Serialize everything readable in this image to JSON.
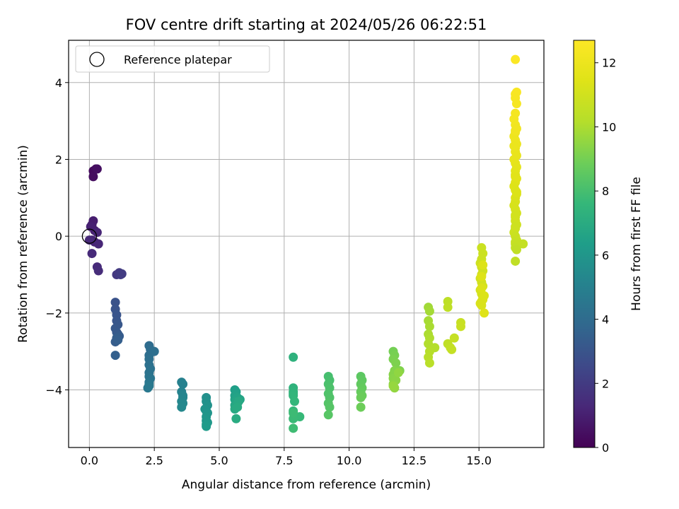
{
  "chart_data": {
    "type": "scatter",
    "title": "FOV centre drift starting at 2024/05/26 06:22:51",
    "xlabel": "Angular distance from reference (arcmin)",
    "ylabel": "Rotation from reference (arcmin)",
    "xlim": [
      -0.8,
      17.5
    ],
    "ylim": [
      -5.5,
      5.1
    ],
    "xticks": [
      0.0,
      2.5,
      5.0,
      7.5,
      10.0,
      12.5,
      15.0
    ],
    "xtick_labels": [
      "0.0",
      "2.5",
      "5.0",
      "7.5",
      "10.0",
      "12.5",
      "15.0"
    ],
    "yticks": [
      -4,
      -2,
      0,
      2,
      4
    ],
    "ytick_labels": [
      "−4",
      "−2",
      "0",
      "2",
      "4"
    ],
    "grid": true,
    "legend": {
      "placement": "top-left",
      "entries": [
        "Reference platepar"
      ]
    },
    "reference_point": {
      "x": 0.0,
      "y": 0.0
    },
    "colorbar": {
      "label": "Hours from first FF file",
      "colormap": "viridis",
      "range": [
        0,
        12.7
      ],
      "ticks": [
        0,
        2,
        4,
        6,
        8,
        10,
        12
      ],
      "tick_labels": [
        "0",
        "2",
        "4",
        "6",
        "8",
        "10",
        "12"
      ]
    },
    "series": [
      {
        "x": [
          0.15,
          0.25,
          0.15,
          0.3
        ],
        "y": [
          1.7,
          1.75,
          1.55,
          1.75
        ],
        "c": [
          0.3,
          0.35,
          0.4,
          0.45
        ]
      },
      {
        "x": [
          0.1,
          0.15,
          0.2,
          0.05,
          0.1,
          0.2,
          0.3,
          0.35,
          0.0,
          0.1,
          0.3,
          0.35
        ],
        "y": [
          0.3,
          0.4,
          0.15,
          0.25,
          -0.1,
          -0.15,
          0.1,
          -0.2,
          -0.1,
          -0.45,
          -0.8,
          -0.9
        ],
        "c": [
          0.9,
          0.95,
          1.0,
          1.05,
          1.1,
          1.15,
          1.2,
          1.25,
          1.3,
          1.35,
          1.4,
          1.45
        ]
      },
      {
        "x": [
          1.05,
          1.15,
          1.2,
          1.25
        ],
        "y": [
          -1.0,
          -0.95,
          -1.0,
          -0.98
        ],
        "c": [
          1.9,
          1.95,
          2.0,
          2.05
        ]
      },
      {
        "x": [
          1.0,
          1.0,
          1.05,
          1.05,
          1.1,
          1.0,
          1.05,
          1.1,
          1.15,
          1.0,
          1.05,
          1.1,
          1.0
        ],
        "y": [
          -1.72,
          -1.9,
          -2.05,
          -2.2,
          -2.3,
          -2.4,
          -2.5,
          -2.55,
          -2.6,
          -2.75,
          -2.65,
          -2.7,
          -3.1
        ],
        "c": [
          2.9,
          2.95,
          3.0,
          3.05,
          3.1,
          3.15,
          3.2,
          3.25,
          3.3,
          3.35,
          3.4,
          3.45,
          3.5
        ]
      },
      {
        "x": [
          2.3,
          2.35,
          2.3,
          2.5,
          2.3,
          2.3,
          2.35,
          2.3,
          2.3,
          2.35,
          2.3,
          2.3,
          2.25,
          2.3
        ],
        "y": [
          -2.85,
          -2.95,
          -3.1,
          -3.0,
          -3.2,
          -3.35,
          -3.45,
          -3.55,
          -3.65,
          -3.7,
          -3.8,
          -3.85,
          -3.95,
          -3.9
        ],
        "c": [
          4.0,
          4.05,
          4.1,
          4.15,
          4.2,
          4.25,
          4.3,
          4.35,
          4.4,
          4.45,
          4.5,
          4.55,
          4.6,
          4.65
        ]
      },
      {
        "x": [
          3.55,
          3.6,
          3.55,
          3.6,
          3.6,
          3.55,
          3.6,
          3.55
        ],
        "y": [
          -3.8,
          -3.85,
          -4.05,
          -4.15,
          -4.2,
          -4.3,
          -4.35,
          -4.45
        ],
        "c": [
          5.0,
          5.05,
          5.1,
          5.15,
          5.2,
          5.25,
          5.3,
          5.35
        ]
      },
      {
        "x": [
          4.5,
          4.5,
          4.55,
          4.45,
          4.5,
          4.55,
          4.5,
          4.5,
          4.55,
          4.5,
          4.5
        ],
        "y": [
          -4.2,
          -4.3,
          -4.4,
          -4.5,
          -4.55,
          -4.6,
          -4.7,
          -4.8,
          -4.85,
          -4.9,
          -4.95
        ],
        "c": [
          5.7,
          5.75,
          5.8,
          5.85,
          5.9,
          5.95,
          6.0,
          6.05,
          6.1,
          6.15,
          6.2
        ]
      },
      {
        "x": [
          5.6,
          5.65,
          5.6,
          5.6,
          5.7,
          5.8,
          5.65,
          5.6,
          5.7,
          5.75,
          5.6,
          5.7,
          5.65
        ],
        "y": [
          -4.0,
          -4.05,
          -4.15,
          -4.25,
          -4.2,
          -4.25,
          -4.3,
          -4.4,
          -4.35,
          -4.3,
          -4.5,
          -4.45,
          -4.75
        ],
        "c": [
          6.4,
          6.45,
          6.5,
          6.55,
          6.6,
          6.65,
          6.7,
          6.75,
          6.8,
          6.85,
          6.9,
          6.95,
          7.0
        ]
      },
      {
        "x": [
          7.85,
          7.85,
          7.85,
          7.85,
          7.85,
          7.9,
          7.85,
          8.1,
          7.95,
          7.85,
          7.85,
          7.85
        ],
        "y": [
          -3.15,
          -3.95,
          -4.05,
          -4.1,
          -4.15,
          -4.3,
          -4.55,
          -4.7,
          -4.7,
          -4.75,
          -4.6,
          -5.0
        ],
        "c": [
          7.3,
          7.35,
          7.4,
          7.45,
          7.5,
          7.55,
          7.6,
          7.65,
          7.7,
          7.75,
          7.8,
          7.85
        ]
      },
      {
        "x": [
          9.2,
          9.25,
          9.2,
          9.25,
          9.2,
          9.25,
          9.2,
          9.25,
          9.2
        ],
        "y": [
          -3.65,
          -3.75,
          -3.85,
          -3.95,
          -4.1,
          -4.2,
          -4.35,
          -4.45,
          -4.65
        ],
        "c": [
          8.0,
          8.05,
          8.1,
          8.15,
          8.2,
          8.25,
          8.3,
          8.35,
          8.4
        ]
      },
      {
        "x": [
          10.45,
          10.5,
          10.45,
          10.5,
          10.45,
          10.5,
          10.45,
          10.45
        ],
        "y": [
          -3.65,
          -3.75,
          -3.85,
          -3.95,
          -4.05,
          -4.15,
          -4.2,
          -4.45
        ],
        "c": [
          8.5,
          8.55,
          8.6,
          8.65,
          8.7,
          8.75,
          8.8,
          8.85
        ]
      },
      {
        "x": [
          11.7,
          11.75,
          11.7,
          11.8,
          11.95,
          11.75,
          11.7,
          11.7,
          11.8,
          11.7,
          11.9,
          11.75,
          11.7
        ],
        "y": [
          -3.0,
          -3.1,
          -3.2,
          -3.3,
          -3.5,
          -3.5,
          -3.6,
          -3.7,
          -3.75,
          -3.85,
          -3.55,
          -3.95,
          -3.9
        ],
        "c": [
          9.0,
          9.05,
          9.1,
          9.15,
          9.2,
          9.25,
          9.3,
          9.35,
          9.4,
          9.45,
          9.5,
          9.55,
          9.6
        ]
      },
      {
        "x": [
          13.05,
          13.1,
          13.05,
          13.1,
          13.05,
          13.1,
          13.05,
          13.3,
          13.1,
          13.05,
          13.1
        ],
        "y": [
          -1.85,
          -1.95,
          -2.2,
          -2.35,
          -2.55,
          -2.65,
          -2.8,
          -2.9,
          -3.0,
          -3.15,
          -3.3
        ],
        "c": [
          9.8,
          9.85,
          9.9,
          9.95,
          10.0,
          10.05,
          10.1,
          10.15,
          10.2,
          10.25,
          10.3
        ]
      },
      {
        "x": [
          13.8,
          13.8,
          13.8,
          13.9,
          13.95,
          14.05,
          14.3,
          14.3
        ],
        "y": [
          -1.7,
          -1.85,
          -2.8,
          -2.9,
          -2.95,
          -2.65,
          -2.25,
          -2.35
        ],
        "c": [
          10.4,
          10.45,
          10.5,
          10.55,
          10.6,
          10.65,
          10.7,
          10.75
        ]
      },
      {
        "x": [
          15.1,
          15.15,
          15.1,
          15.05,
          15.1,
          15.15,
          15.1,
          15.05,
          15.1,
          15.15,
          15.05,
          15.1,
          15.15,
          15.1,
          15.05,
          15.1,
          15.15,
          15.2,
          15.1,
          15.15,
          15.1,
          15.2
        ],
        "y": [
          -0.3,
          -0.45,
          -0.6,
          -0.7,
          -0.8,
          -0.9,
          -1.0,
          -1.1,
          -1.2,
          -1.3,
          -1.4,
          -1.5,
          -1.6,
          -1.7,
          -1.75,
          -1.8,
          -1.65,
          -1.55,
          -1.35,
          -0.75,
          -1.05,
          -2.0
        ],
        "c": [
          10.8,
          10.83,
          10.86,
          10.89,
          10.92,
          10.95,
          10.98,
          11.01,
          11.04,
          11.07,
          11.1,
          11.13,
          11.16,
          11.19,
          11.22,
          11.25,
          11.28,
          11.31,
          11.34,
          11.37,
          11.4,
          11.43
        ]
      },
      {
        "x": [
          16.4,
          16.45,
          16.4,
          16.4,
          16.45,
          16.4,
          16.35,
          16.4,
          16.45,
          16.4,
          16.35,
          16.4,
          16.45,
          16.4,
          16.4,
          16.45,
          16.35,
          16.4,
          16.45,
          16.4,
          16.4,
          16.45,
          16.4,
          16.35,
          16.4,
          16.45,
          16.4,
          16.4,
          16.35,
          16.4,
          16.45,
          16.4,
          16.4,
          16.45,
          16.4,
          16.35,
          16.4,
          16.45,
          16.4,
          16.4,
          16.45,
          16.7,
          16.55,
          16.4,
          16.45,
          16.4,
          16.4,
          16.35,
          16.4,
          16.45,
          16.4,
          16.4
        ],
        "y": [
          4.6,
          3.75,
          3.7,
          3.6,
          3.45,
          3.2,
          3.05,
          2.9,
          2.8,
          2.7,
          2.6,
          2.5,
          2.4,
          2.3,
          2.2,
          2.1,
          2.0,
          1.9,
          1.8,
          1.7,
          1.6,
          1.5,
          1.4,
          1.3,
          1.2,
          1.1,
          1.0,
          0.9,
          0.8,
          0.7,
          0.6,
          0.5,
          0.4,
          0.3,
          0.2,
          0.1,
          0.0,
          -0.1,
          -0.15,
          -0.2,
          -0.25,
          -0.2,
          -0.2,
          -0.3,
          -0.35,
          -0.65,
          2.75,
          2.35,
          1.55,
          1.15,
          0.55,
          0.25
        ],
        "c": [
          12.6,
          12.55,
          12.5,
          12.45,
          12.4,
          12.35,
          12.3,
          12.25,
          12.2,
          12.15,
          12.1,
          12.05,
          12.0,
          11.95,
          11.9,
          11.85,
          11.8,
          11.75,
          11.7,
          11.65,
          11.6,
          11.55,
          11.5,
          11.45,
          11.4,
          11.35,
          11.3,
          11.25,
          11.2,
          11.15,
          11.1,
          11.05,
          11.0,
          10.95,
          10.9,
          10.85,
          10.8,
          10.75,
          10.7,
          10.65,
          10.6,
          10.6,
          10.6,
          10.55,
          10.5,
          10.5,
          12.2,
          11.95,
          11.55,
          11.35,
          11.05,
          10.9
        ]
      }
    ]
  }
}
